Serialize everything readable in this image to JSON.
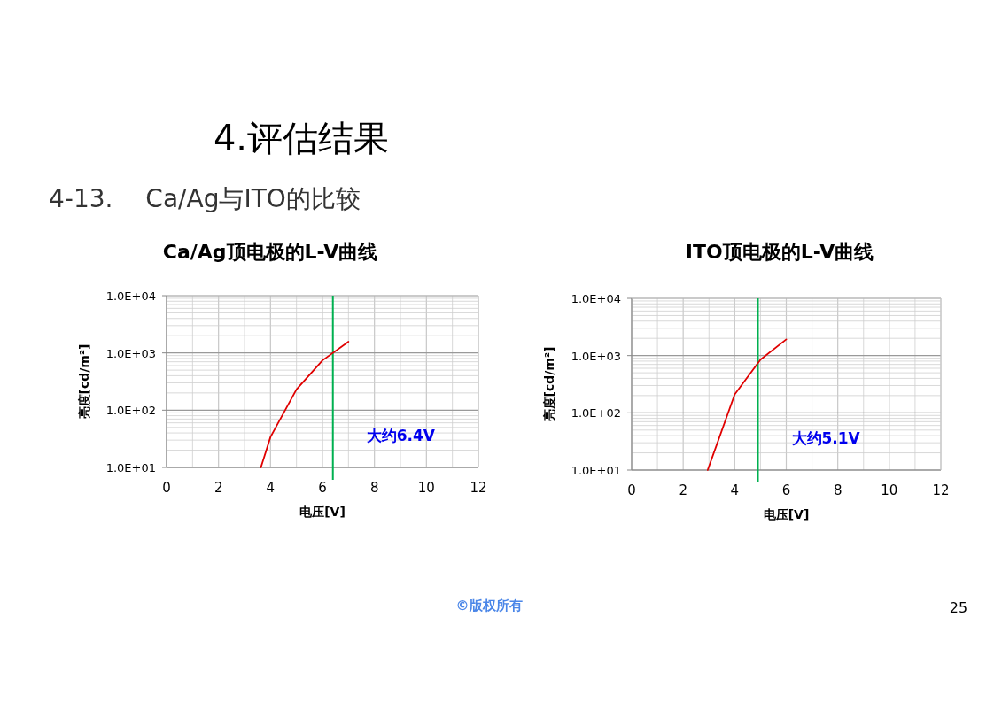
{
  "chart_data": [
    {
      "type": "line",
      "title": "Ca/Ag顶电极的L-V曲线",
      "xlabel": "电压[V]",
      "ylabel": "亮度[cd/m²]",
      "log": "y",
      "grid": true,
      "xlim": [
        0,
        12
      ],
      "xticks": [
        0,
        2,
        4,
        6,
        8,
        10,
        12
      ],
      "ylim": [
        10,
        10000
      ],
      "yticks": [
        {
          "value": 10,
          "label": "1.0E+01"
        },
        {
          "value": 100,
          "label": "1.0E+02"
        },
        {
          "value": 1000,
          "label": "1.0E+03"
        },
        {
          "value": 10000,
          "label": "1.0E+04"
        }
      ],
      "series": [
        {
          "color": "#e00000",
          "x": [
            3.63,
            4,
            5,
            6,
            7
          ],
          "values": [
            10,
            34,
            230,
            740,
            1570
          ]
        }
      ],
      "ref_lines": [
        {
          "axis": "x",
          "value": 6.4,
          "label": "大约6.4V",
          "color": "#00b050"
        }
      ],
      "annotations": [
        "4.评估结果",
        "4-13.　 Ca/Ag与ITO的比较",
        "©版权所有",
        "25"
      ]
    },
    {
      "type": "line",
      "title": "ITO顶电极的L-V曲线",
      "xlabel": "电压[V]",
      "ylabel": "亮度[cd/m²]",
      "log": "y",
      "grid": true,
      "xlim": [
        0,
        12
      ],
      "xticks": [
        0,
        2,
        4,
        6,
        8,
        10,
        12
      ],
      "ylim": [
        10,
        10000
      ],
      "yticks": [
        {
          "value": 10,
          "label": "1.0E+01"
        },
        {
          "value": 100,
          "label": "1.0E+02"
        },
        {
          "value": 1000,
          "label": "1.0E+03"
        },
        {
          "value": 10000,
          "label": "1.0E+04"
        }
      ],
      "series": [
        {
          "color": "#e00000",
          "x": [
            2.95,
            4,
            5,
            6
          ],
          "values": [
            10,
            210,
            850,
            1920
          ]
        }
      ],
      "ref_lines": [
        {
          "axis": "x",
          "value": 4.9,
          "label": "大约5.1V",
          "color": "#00b050"
        }
      ]
    }
  ]
}
